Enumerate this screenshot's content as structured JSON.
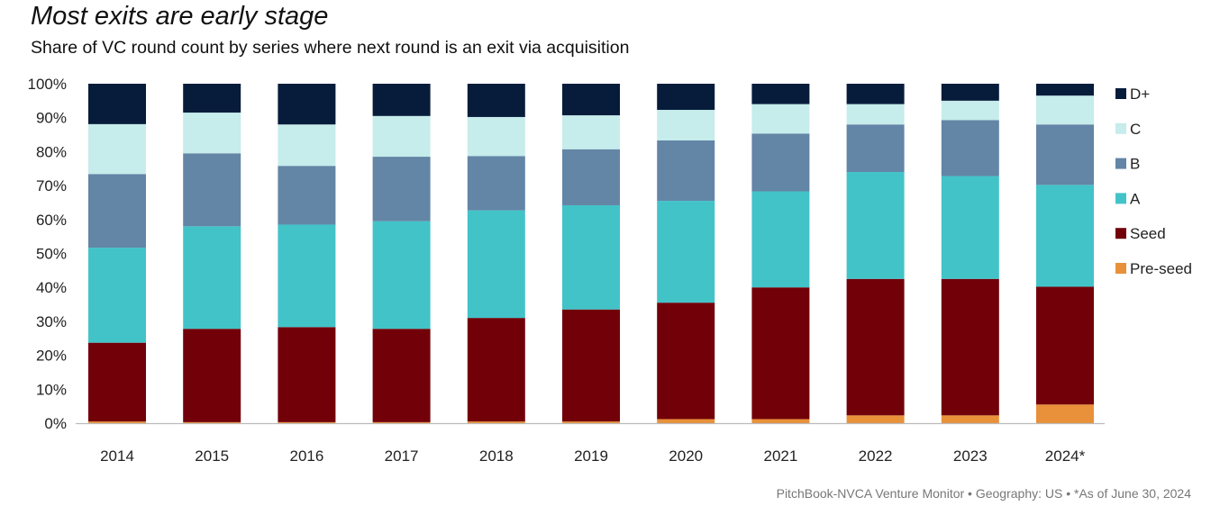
{
  "header": {
    "title": "Most exits are early stage",
    "subtitle": "Share of VC round count by series where next round is an exit via acquisition"
  },
  "footer": {
    "source": "PitchBook-NVCA Venture Monitor • Geography: US • *As of June 30, 2024"
  },
  "chart_data": {
    "type": "bar",
    "stacked": true,
    "percent": true,
    "title": "Most exits are early stage",
    "subtitle": "Share of VC round count by series where next round is an exit via acquisition",
    "xlabel": "",
    "ylabel": "",
    "ylim": [
      0,
      100
    ],
    "yticks": [
      0,
      10,
      20,
      30,
      40,
      50,
      60,
      70,
      80,
      90,
      100
    ],
    "ytick_labels": [
      "0%",
      "10%",
      "20%",
      "30%",
      "40%",
      "50%",
      "60%",
      "70%",
      "80%",
      "90%",
      "100%"
    ],
    "grid": false,
    "legend_position": "right",
    "categories": [
      "2014",
      "2015",
      "2016",
      "2017",
      "2018",
      "2019",
      "2020",
      "2021",
      "2022",
      "2023",
      "2024*"
    ],
    "series": [
      {
        "name": "Pre-seed",
        "color": "#e8913a",
        "values": [
          0.5,
          0.3,
          0.3,
          0.3,
          0.5,
          0.5,
          1.2,
          1.2,
          2.3,
          2.3,
          5.5
        ]
      },
      {
        "name": "Seed",
        "color": "#720009",
        "values": [
          23.2,
          27.5,
          28.0,
          27.5,
          30.5,
          33.0,
          34.3,
          38.8,
          40.2,
          40.2,
          34.7
        ]
      },
      {
        "name": "A",
        "color": "#42c3c8",
        "values": [
          28.0,
          30.2,
          30.2,
          31.7,
          31.7,
          30.7,
          30.0,
          28.3,
          31.5,
          30.3,
          30.0
        ]
      },
      {
        "name": "B",
        "color": "#6385a6",
        "values": [
          21.7,
          21.5,
          17.3,
          19.0,
          16.0,
          16.5,
          17.8,
          17.0,
          14.0,
          16.5,
          17.8
        ]
      },
      {
        "name": "C",
        "color": "#c6eceb",
        "values": [
          14.7,
          12.0,
          12.2,
          12.0,
          11.5,
          10.0,
          9.0,
          8.7,
          6.0,
          5.7,
          8.5
        ]
      },
      {
        "name": "D+",
        "color": "#071c3b",
        "values": [
          11.9,
          8.5,
          12.0,
          9.5,
          9.8,
          9.3,
          7.7,
          6.0,
          6.0,
          5.0,
          3.5
        ]
      }
    ]
  }
}
